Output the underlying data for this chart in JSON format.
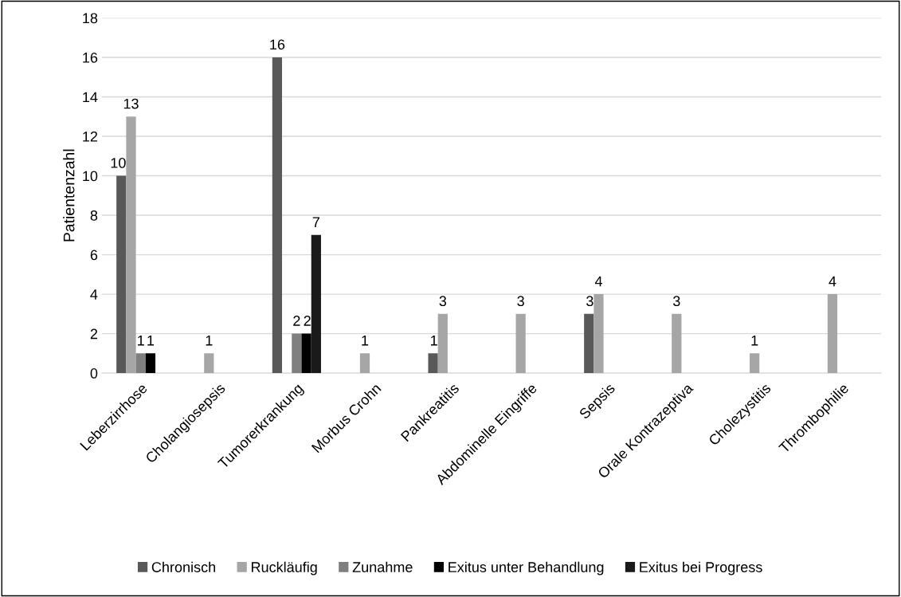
{
  "chart_data": {
    "type": "bar",
    "ylabel": "Patientenzahl",
    "categories": [
      "Leberzirrhose",
      "Cholangiosepsis",
      "Tumorerkrankung",
      "Morbus Crohn",
      "Pankreatitis",
      "Abdominelle Eingriffe",
      "Sepsis",
      "Orale Kontrazeptiva",
      "Cholezystitis",
      "Thrombophilie"
    ],
    "series": [
      {
        "name": "Chronisch",
        "color": "#595959",
        "values": [
          10,
          null,
          16,
          null,
          1,
          null,
          3,
          null,
          null,
          null
        ]
      },
      {
        "name": "Ruckläufig",
        "color": "#a6a6a6",
        "values": [
          13,
          1,
          null,
          1,
          3,
          3,
          4,
          3,
          1,
          4
        ]
      },
      {
        "name": "Zunahme",
        "color": "#7f7f7f",
        "values": [
          1,
          null,
          2,
          null,
          null,
          null,
          null,
          null,
          null,
          null
        ]
      },
      {
        "name": "Exitus unter Behandlung",
        "color": "#000000",
        "values": [
          1,
          null,
          2,
          null,
          null,
          null,
          null,
          null,
          null,
          null
        ]
      },
      {
        "name": "Exitus bei Progress",
        "color": "#1a1a1a",
        "values": [
          null,
          null,
          7,
          null,
          null,
          null,
          null,
          null,
          null,
          null
        ]
      }
    ],
    "ylim": [
      0,
      18
    ],
    "yticks": [
      0,
      2,
      4,
      6,
      8,
      10,
      12,
      14,
      16,
      18
    ],
    "grid": "y",
    "legend": "bottom",
    "data_labels": true
  }
}
